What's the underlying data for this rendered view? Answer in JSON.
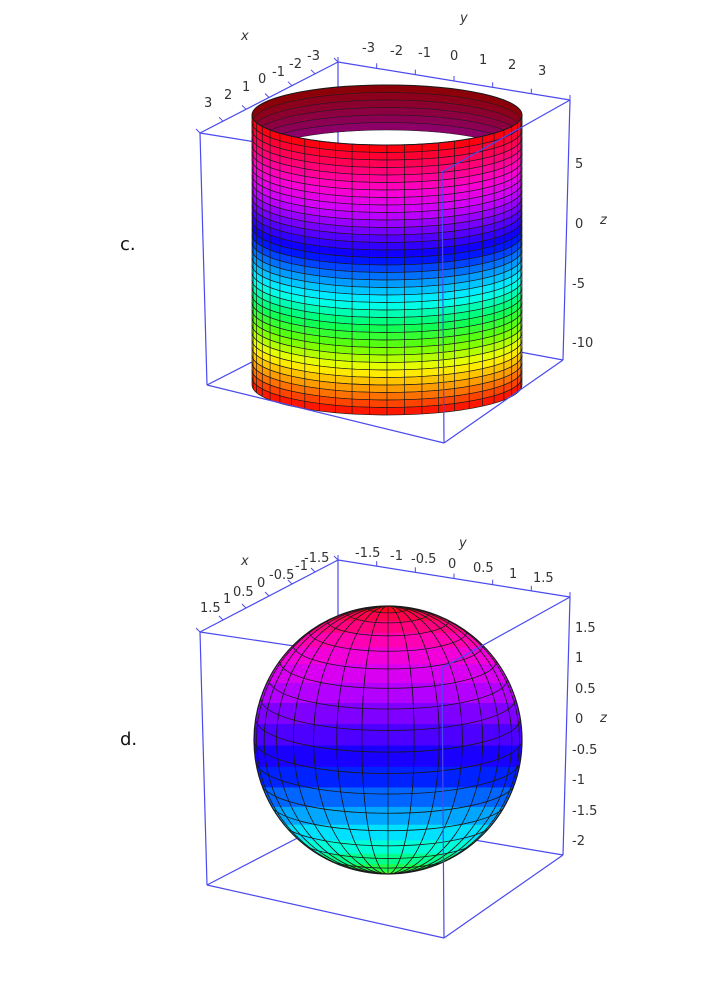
{
  "colors": {
    "box": "#4a4aee",
    "background": "#ffffff",
    "tick_text": "#333333",
    "mesh_line": "#1a1a1a"
  },
  "plots": [
    {
      "id": "c",
      "item_label": "c.",
      "surface": "cylinder",
      "axis_names": {
        "x": "x",
        "y": "y",
        "z": "z"
      },
      "x_ticks": [
        "3",
        "2",
        "1",
        "0",
        "-1",
        "-2",
        "-3"
      ],
      "y_ticks": [
        "-3",
        "-2",
        "-1",
        "0",
        "1",
        "2",
        "3"
      ],
      "z_ticks": [
        "5",
        "0",
        "-5",
        "-10"
      ],
      "colormap": [
        "#ff0000",
        "#ff0066",
        "#ff00cc",
        "#cc00ff",
        "#6600ff",
        "#0000ff",
        "#0088ff",
        "#00ffff",
        "#00ff66",
        "#66ff00",
        "#ffff00",
        "#ff8800",
        "#ff0000"
      ]
    },
    {
      "id": "d",
      "item_label": "d.",
      "surface": "sphere",
      "axis_names": {
        "x": "x",
        "y": "y",
        "z": "z"
      },
      "x_ticks": [
        "1.5",
        "1",
        "0.5",
        "0",
        "-0.5",
        "-1",
        "-1.5"
      ],
      "y_ticks": [
        "-1.5",
        "-1",
        "-0.5",
        "0",
        "0.5",
        "1",
        "1.5"
      ],
      "z_ticks": [
        "1.5",
        "1",
        "0.5",
        "0",
        "-0.5",
        "-1",
        "-1.5",
        "-2"
      ],
      "colormap": [
        "#ff0000",
        "#ff0066",
        "#ff00cc",
        "#cc00ff",
        "#6600ff",
        "#0000ff",
        "#0088ff",
        "#00ffff",
        "#00ff66",
        "#66ff00",
        "#ffff00"
      ]
    }
  ]
}
